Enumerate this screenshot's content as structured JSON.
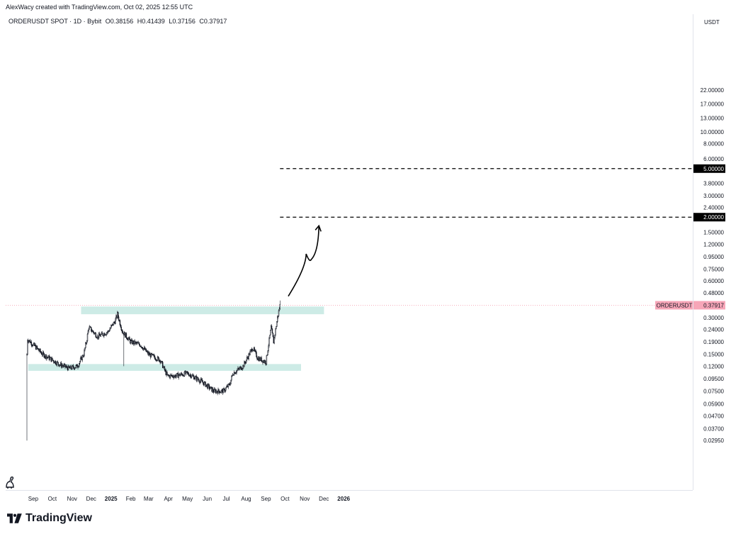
{
  "header": {
    "created_text": "AlexWacy created with TradingView.com, Oct 02, 2025 12:55 UTC"
  },
  "symbol_bar": {
    "symbol": "ORDERUSDT SPOT · 1D · Bybit",
    "open": "O0.38156",
    "high": "H0.41439",
    "low": "L0.37156",
    "close": "C0.37917"
  },
  "price_scale": {
    "currency": "USDT",
    "labels": [
      "22.00000",
      "17.00000",
      "13.00000",
      "10.00000",
      "8.00000",
      "6.00000",
      "5.00000",
      "3.80000",
      "3.00000",
      "2.40000",
      "2.00000",
      "1.50000",
      "1.20000",
      "0.95000",
      "0.75000",
      "0.60000",
      "0.48000",
      "0.37917",
      "0.30000",
      "0.24000",
      "0.19000",
      "0.15000",
      "0.12000",
      "0.09500",
      "0.07500",
      "0.05900",
      "0.04700",
      "0.03700",
      "0.02950"
    ],
    "highlighted": [
      {
        "value": "5.00000",
        "color": "#000000"
      },
      {
        "value": "2.00000",
        "color": "#000000"
      },
      {
        "value": "0.37917",
        "color": "#f7a6b8",
        "tag": "ORDERUSDT"
      }
    ]
  },
  "time_axis": {
    "labels": [
      "Sep",
      "Oct",
      "Nov",
      "Dec",
      "2025",
      "Feb",
      "Mar",
      "Apr",
      "May",
      "Jun",
      "Jul",
      "Aug",
      "Sep",
      "Oct",
      "Nov",
      "Dec",
      "2026"
    ]
  },
  "branding": {
    "logo_text": "TradingView"
  },
  "colors": {
    "zone": "#cdebe6",
    "price_line": "#f7a6b8",
    "candle": "#131722"
  },
  "chart_data": {
    "type": "candlestick",
    "symbol": "ORDERUSDT",
    "interval": "1D",
    "scale": "log",
    "yaxis_unit": "USDT",
    "last_price": 0.37917,
    "ohlc_last": {
      "open": 0.38156,
      "high": 0.41439,
      "low": 0.37156,
      "close": 0.37917
    },
    "close_path": [
      {
        "x": "2024-08-31",
        "y": 0.15
      },
      {
        "x": "2024-09-01",
        "y": 0.2
      },
      {
        "x": "2024-09-10",
        "y": 0.18
      },
      {
        "x": "2024-09-25",
        "y": 0.15
      },
      {
        "x": "2024-10-05",
        "y": 0.14
      },
      {
        "x": "2024-10-20",
        "y": 0.125
      },
      {
        "x": "2024-11-05",
        "y": 0.115
      },
      {
        "x": "2024-11-18",
        "y": 0.12
      },
      {
        "x": "2024-11-28",
        "y": 0.15
      },
      {
        "x": "2024-12-03",
        "y": 0.2
      },
      {
        "x": "2024-12-06",
        "y": 0.25
      },
      {
        "x": "2024-12-20",
        "y": 0.21
      },
      {
        "x": "2025-01-05",
        "y": 0.23
      },
      {
        "x": "2025-01-16",
        "y": 0.28
      },
      {
        "x": "2025-01-20",
        "y": 0.32
      },
      {
        "x": "2025-01-28",
        "y": 0.23
      },
      {
        "x": "2025-02-10",
        "y": 0.19
      },
      {
        "x": "2025-02-25",
        "y": 0.18
      },
      {
        "x": "2025-03-10",
        "y": 0.15
      },
      {
        "x": "2025-03-28",
        "y": 0.135
      },
      {
        "x": "2025-04-08",
        "y": 0.1
      },
      {
        "x": "2025-04-20",
        "y": 0.1
      },
      {
        "x": "2025-05-10",
        "y": 0.105
      },
      {
        "x": "2025-06-01",
        "y": 0.09
      },
      {
        "x": "2025-06-20",
        "y": 0.075
      },
      {
        "x": "2025-07-05",
        "y": 0.075
      },
      {
        "x": "2025-07-15",
        "y": 0.085
      },
      {
        "x": "2025-07-20",
        "y": 0.105
      },
      {
        "x": "2025-08-05",
        "y": 0.12
      },
      {
        "x": "2025-08-20",
        "y": 0.17
      },
      {
        "x": "2025-08-28",
        "y": 0.14
      },
      {
        "x": "2025-09-10",
        "y": 0.13
      },
      {
        "x": "2025-09-18",
        "y": 0.25
      },
      {
        "x": "2025-09-22",
        "y": 0.19
      },
      {
        "x": "2025-09-28",
        "y": 0.3
      },
      {
        "x": "2025-10-02",
        "y": 0.37917
      }
    ],
    "sharp_lows": [
      {
        "x": "2024-08-31",
        "y": 0.0295
      },
      {
        "x": "2025-01-30",
        "y": 0.12
      }
    ],
    "zones": [
      {
        "from_date": "2024-11-24",
        "to_date": "2025-12-10",
        "low": 0.32,
        "high": 0.37
      },
      {
        "from_date": "2024-09-02",
        "to_date": "2025-11-04",
        "low": 0.11,
        "high": 0.125
      }
    ],
    "target_levels": [
      {
        "value": 5.0,
        "from_date": "2025-10-02",
        "style": "dashed"
      },
      {
        "value": 2.0,
        "from_date": "2025-10-02",
        "style": "dashed"
      }
    ],
    "projection_arrow": [
      {
        "x": "2025-10-15",
        "y": 0.45
      },
      {
        "x": "2025-11-12",
        "y": 1.0
      },
      {
        "x": "2025-11-20",
        "y": 0.9
      },
      {
        "x": "2025-12-02",
        "y": 1.7
      }
    ]
  }
}
